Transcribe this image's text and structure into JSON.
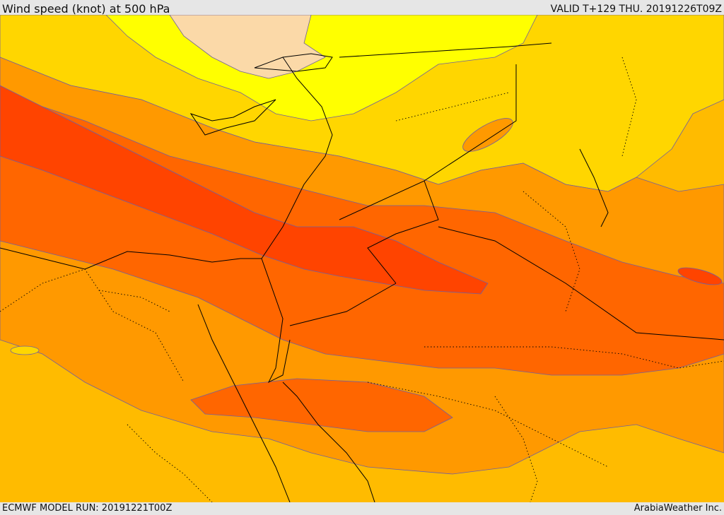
{
  "header": {
    "title": "Wind speed (knot) at 500 hPa",
    "valid": "VALID T+129 THU. 20191226T09Z"
  },
  "footer": {
    "model_run": "ECMWF MODEL RUN: 20191221T00Z",
    "credit": "ArabiaWeather Inc."
  },
  "colors": {
    "light_band": "#fbd9a8",
    "yellow": "#ffff00",
    "yellow_orange": "#ffd600",
    "gold": "#ffbb00",
    "orange": "#ff9900",
    "dark_orange": "#ff6600",
    "red_orange": "#ff4400",
    "contour": "#7060a0",
    "coast": "#000000"
  }
}
